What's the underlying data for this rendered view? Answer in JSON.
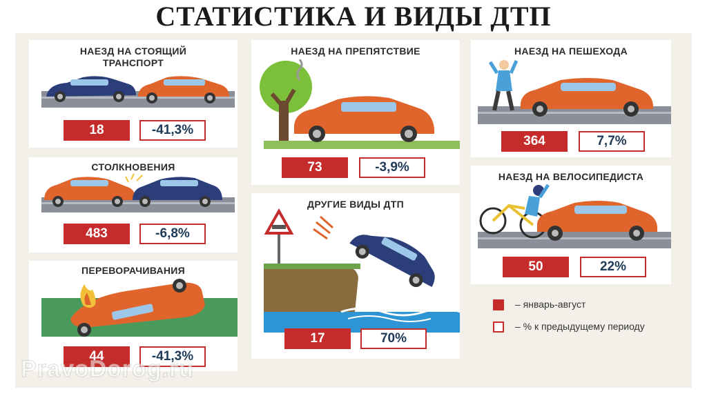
{
  "title": "СТАТИСТИКА И ВИДЫ ДТП",
  "cards": [
    {
      "title": "НАЕЗД НА СТОЯЩИЙ ТРАНСПОРТ",
      "count": "18",
      "change": "-41,3%"
    },
    {
      "title": "СТОЛКНОВЕНИЯ",
      "count": "483",
      "change": "-6,8%"
    },
    {
      "title": "ПЕРЕВОРАЧИВАНИЯ",
      "count": "44",
      "change": "-41,3%"
    },
    {
      "title": "НАЕЗД НА ПРЕПЯТСТВИЕ",
      "count": "73",
      "change": "-3,9%"
    },
    {
      "title": "ДРУГИЕ ВИДЫ ДТП",
      "count": "17",
      "change": "70%"
    },
    {
      "title": "НАЕЗД НА ПЕШЕХОДА",
      "count": "364",
      "change": "7,7%"
    },
    {
      "title": "НАЕЗД НА ВЕЛОСИПЕДИСТА",
      "count": "50",
      "change": "22%"
    }
  ],
  "legend": {
    "filled": "– январь-август",
    "outlined": "– % к предыдущему периоду"
  },
  "watermark": "PravoDorog.ru",
  "colors": {
    "accent_red": "#c62b2b",
    "car_orange": "#e0652c",
    "car_blue": "#2c3e7a",
    "road": "#8a8f99",
    "number_text": "#1e3a57"
  }
}
